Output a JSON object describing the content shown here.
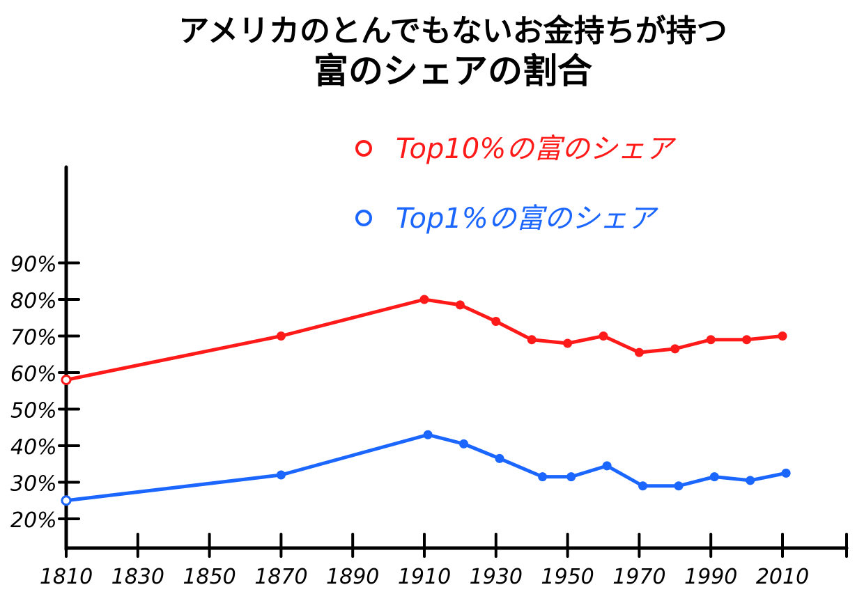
{
  "chart_data": {
    "type": "line",
    "title": "アメリカのとんでもないお金持ちが持つ",
    "subtitle": "富のシェアの割合",
    "xlabel": "",
    "ylabel": "",
    "xlim": [
      1810,
      2030
    ],
    "ylim": [
      15,
      100
    ],
    "x_ticks": [
      1810,
      1830,
      1850,
      1870,
      1890,
      1910,
      1930,
      1950,
      1970,
      1990,
      2010
    ],
    "y_ticks": [
      {
        "value": 20,
        "label": "20%"
      },
      {
        "value": 30,
        "label": "30%"
      },
      {
        "value": 40,
        "label": "40%"
      },
      {
        "value": 50,
        "label": "50%"
      },
      {
        "value": 60,
        "label": "60%"
      },
      {
        "value": 70,
        "label": "70%"
      },
      {
        "value": 80,
        "label": "80%"
      },
      {
        "value": 90,
        "label": "90%"
      }
    ],
    "legend_position": "top-center",
    "grid": false,
    "series": [
      {
        "name": "Top10%の富のシェア",
        "color": "#ff1a1a",
        "points": [
          {
            "x": 1810,
            "y": 58
          },
          {
            "x": 1870,
            "y": 70
          },
          {
            "x": 1910,
            "y": 80
          },
          {
            "x": 1920,
            "y": 78.5
          },
          {
            "x": 1930,
            "y": 74
          },
          {
            "x": 1940,
            "y": 69
          },
          {
            "x": 1950,
            "y": 68
          },
          {
            "x": 1960,
            "y": 70
          },
          {
            "x": 1970,
            "y": 65.5
          },
          {
            "x": 1980,
            "y": 66.5
          },
          {
            "x": 1990,
            "y": 69
          },
          {
            "x": 2000,
            "y": 69
          },
          {
            "x": 2010,
            "y": 70
          }
        ]
      },
      {
        "name": "Top1%の富のシェア",
        "color": "#1a66ff",
        "points": [
          {
            "x": 1810,
            "y": 25
          },
          {
            "x": 1870,
            "y": 32
          },
          {
            "x": 1911,
            "y": 43
          },
          {
            "x": 1921,
            "y": 40.5
          },
          {
            "x": 1931,
            "y": 36.5
          },
          {
            "x": 1943,
            "y": 31.5
          },
          {
            "x": 1951,
            "y": 31.5
          },
          {
            "x": 1961,
            "y": 34.5
          },
          {
            "x": 1971,
            "y": 29
          },
          {
            "x": 1981,
            "y": 29
          },
          {
            "x": 1991,
            "y": 31.5
          },
          {
            "x": 2001,
            "y": 30.5
          },
          {
            "x": 2011,
            "y": 32.5
          }
        ]
      }
    ]
  }
}
